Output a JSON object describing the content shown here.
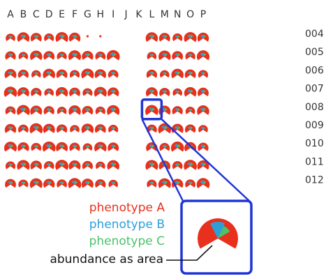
{
  "chart_data": {
    "type": "glyph-grid",
    "columns": [
      "A",
      "B",
      "C",
      "D",
      "E",
      "F",
      "G",
      "H",
      "I",
      "J",
      "K",
      "L",
      "M",
      "N",
      "O",
      "P"
    ],
    "rows": [
      "004",
      "005",
      "006",
      "007",
      "008",
      "009",
      "010",
      "011",
      "012"
    ],
    "missing_cells": [
      "004-I",
      "004-J",
      "004-K",
      "005-J",
      "005-K",
      "006-J",
      "006-K",
      "007-J",
      "007-K",
      "008-J",
      "008-K",
      "009-J",
      "009-K",
      "010-J",
      "010-K",
      "011-J",
      "011-K",
      "012-J",
      "012-K"
    ],
    "tiny_cells": [
      "004-G",
      "004-H"
    ],
    "highlighted_cell": "008-L",
    "categories": [
      "phenotype A",
      "phenotype B",
      "phenotype C"
    ],
    "zoomed_glyph": {
      "phenotype A": 0.78,
      "phenotype B": 0.13,
      "phenotype C": 0.09
    },
    "legend": [
      {
        "label": "phenotype A",
        "color": "#e8301c"
      },
      {
        "label": "phenotype B",
        "color": "#2e9fd6"
      },
      {
        "label": "phenotype C",
        "color": "#4cc26a"
      }
    ],
    "annotation": "abundance as area"
  },
  "colors": {
    "highlight": "#1f35d6",
    "text": "#333333"
  }
}
